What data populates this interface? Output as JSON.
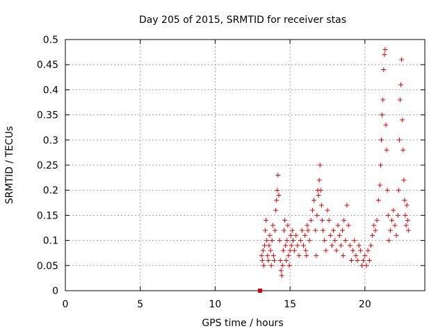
{
  "chart_data": {
    "type": "scatter",
    "title": "Day 205 of 2015, SRMTID for receiver stas",
    "xlabel": "GPS time / hours",
    "ylabel": "SRMTID / TECUs",
    "xlim": [
      0,
      24
    ],
    "ylim": [
      0,
      0.5
    ],
    "xticks": [
      "0",
      "5",
      "10",
      "15",
      "20"
    ],
    "yticks": [
      "0",
      "0.05",
      "0.1",
      "0.15",
      "0.2",
      "0.25",
      "0.3",
      "0.35",
      "0.4",
      "0.45",
      "0.5"
    ],
    "grid": true,
    "marker": "plus",
    "series_color": "#e00000",
    "zero_marker": {
      "x": 13.0,
      "y": 0.0,
      "shape": "square"
    },
    "points": [
      [
        13.1,
        0.07
      ],
      [
        13.15,
        0.06
      ],
      [
        13.2,
        0.08
      ],
      [
        13.25,
        0.05
      ],
      [
        13.3,
        0.09
      ],
      [
        13.35,
        0.12
      ],
      [
        13.4,
        0.14
      ],
      [
        13.45,
        0.1
      ],
      [
        13.5,
        0.07
      ],
      [
        13.55,
        0.06
      ],
      [
        13.6,
        0.09
      ],
      [
        13.65,
        0.11
      ],
      [
        13.7,
        0.08
      ],
      [
        13.75,
        0.05
      ],
      [
        13.8,
        0.1
      ],
      [
        13.85,
        0.13
      ],
      [
        13.9,
        0.07
      ],
      [
        13.95,
        0.06
      ],
      [
        14.0,
        0.12
      ],
      [
        14.05,
        0.16
      ],
      [
        14.1,
        0.18
      ],
      [
        14.15,
        0.2
      ],
      [
        14.2,
        0.23
      ],
      [
        14.25,
        0.19
      ],
      [
        14.3,
        0.1
      ],
      [
        14.35,
        0.06
      ],
      [
        14.4,
        0.04
      ],
      [
        14.45,
        0.03
      ],
      [
        14.5,
        0.05
      ],
      [
        14.55,
        0.08
      ],
      [
        14.6,
        0.12
      ],
      [
        14.65,
        0.14
      ],
      [
        14.7,
        0.09
      ],
      [
        14.75,
        0.06
      ],
      [
        14.8,
        0.1
      ],
      [
        14.85,
        0.13
      ],
      [
        14.9,
        0.07
      ],
      [
        14.95,
        0.05
      ],
      [
        15.0,
        0.08
      ],
      [
        15.05,
        0.11
      ],
      [
        15.1,
        0.09
      ],
      [
        15.15,
        0.12
      ],
      [
        15.2,
        0.1
      ],
      [
        15.3,
        0.08
      ],
      [
        15.4,
        0.11
      ],
      [
        15.5,
        0.09
      ],
      [
        15.6,
        0.07
      ],
      [
        15.7,
        0.1
      ],
      [
        15.8,
        0.12
      ],
      [
        15.9,
        0.09
      ],
      [
        16.0,
        0.11
      ],
      [
        16.05,
        0.08
      ],
      [
        16.1,
        0.07
      ],
      [
        16.15,
        0.13
      ],
      [
        16.2,
        0.12
      ],
      [
        16.3,
        0.1
      ],
      [
        16.4,
        0.14
      ],
      [
        16.5,
        0.16
      ],
      [
        16.6,
        0.18
      ],
      [
        16.7,
        0.12
      ],
      [
        16.75,
        0.07
      ],
      [
        16.8,
        0.15
      ],
      [
        16.85,
        0.2
      ],
      [
        16.9,
        0.19
      ],
      [
        16.95,
        0.22
      ],
      [
        17.0,
        0.25
      ],
      [
        17.05,
        0.2
      ],
      [
        17.1,
        0.17
      ],
      [
        17.15,
        0.14
      ],
      [
        17.2,
        0.12
      ],
      [
        17.3,
        0.1
      ],
      [
        17.4,
        0.08
      ],
      [
        17.5,
        0.16
      ],
      [
        17.6,
        0.14
      ],
      [
        17.7,
        0.11
      ],
      [
        17.8,
        0.09
      ],
      [
        17.9,
        0.12
      ],
      [
        18.0,
        0.1
      ],
      [
        18.1,
        0.08
      ],
      [
        18.2,
        0.13
      ],
      [
        18.3,
        0.11
      ],
      [
        18.4,
        0.09
      ],
      [
        18.5,
        0.12
      ],
      [
        18.55,
        0.07
      ],
      [
        18.6,
        0.14
      ],
      [
        18.7,
        0.1
      ],
      [
        18.8,
        0.17
      ],
      [
        18.9,
        0.13
      ],
      [
        19.0,
        0.09
      ],
      [
        19.1,
        0.06
      ],
      [
        19.2,
        0.08
      ],
      [
        19.3,
        0.1
      ],
      [
        19.4,
        0.07
      ],
      [
        19.5,
        0.06
      ],
      [
        19.6,
        0.09
      ],
      [
        19.7,
        0.08
      ],
      [
        19.8,
        0.05
      ],
      [
        19.9,
        0.06
      ],
      [
        20.0,
        0.07
      ],
      [
        20.1,
        0.05
      ],
      [
        20.2,
        0.08
      ],
      [
        20.3,
        0.06
      ],
      [
        20.4,
        0.09
      ],
      [
        20.5,
        0.11
      ],
      [
        20.6,
        0.13
      ],
      [
        20.7,
        0.12
      ],
      [
        20.8,
        0.14
      ],
      [
        20.9,
        0.18
      ],
      [
        21.0,
        0.21
      ],
      [
        21.05,
        0.25
      ],
      [
        21.1,
        0.3
      ],
      [
        21.15,
        0.35
      ],
      [
        21.2,
        0.38
      ],
      [
        21.25,
        0.44
      ],
      [
        21.3,
        0.47
      ],
      [
        21.35,
        0.48
      ],
      [
        21.4,
        0.33
      ],
      [
        21.45,
        0.28
      ],
      [
        21.5,
        0.2
      ],
      [
        21.55,
        0.15
      ],
      [
        21.6,
        0.1
      ],
      [
        21.7,
        0.12
      ],
      [
        21.8,
        0.14
      ],
      [
        21.9,
        0.16
      ],
      [
        22.0,
        0.13
      ],
      [
        22.1,
        0.11
      ],
      [
        22.2,
        0.15
      ],
      [
        22.25,
        0.2
      ],
      [
        22.3,
        0.3
      ],
      [
        22.35,
        0.38
      ],
      [
        22.4,
        0.41
      ],
      [
        22.45,
        0.46
      ],
      [
        22.5,
        0.34
      ],
      [
        22.55,
        0.28
      ],
      [
        22.6,
        0.22
      ],
      [
        22.65,
        0.18
      ],
      [
        22.7,
        0.15
      ],
      [
        22.75,
        0.13
      ],
      [
        22.8,
        0.17
      ],
      [
        22.85,
        0.14
      ],
      [
        22.9,
        0.12
      ]
    ]
  }
}
